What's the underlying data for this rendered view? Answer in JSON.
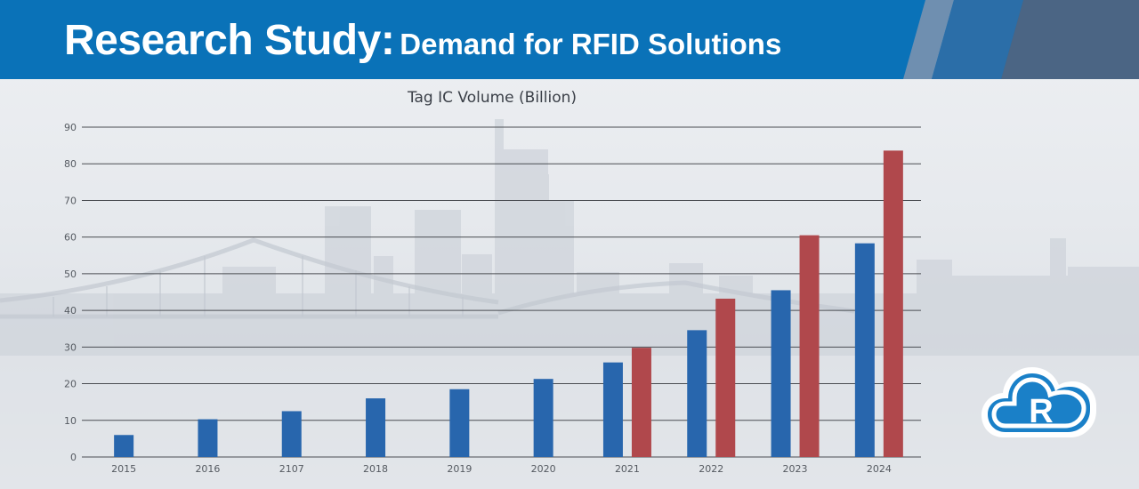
{
  "banner": {
    "title_main": "Research Study:",
    "title_sub": "Demand for RFID Solutions"
  },
  "colors": {
    "header": "#0a72b8",
    "series_1": "#2866ad",
    "series_2": "#b0484c",
    "logo": "#1a80c8"
  },
  "logo": {
    "icon": "cloud-r-logo-icon",
    "letter": "R"
  },
  "chart_data": {
    "type": "bar",
    "title": "Tag IC Volume (Billion)",
    "categories": [
      "2015",
      "2016",
      "2107",
      "2018",
      "2019",
      "2020",
      "2021",
      "2022",
      "2023",
      "2024"
    ],
    "series": [
      {
        "values": [
          6,
          10.3,
          12.5,
          16,
          18.5,
          21.3,
          25.8,
          34.6,
          45.5,
          58.3
        ]
      },
      {
        "values": [
          null,
          null,
          null,
          null,
          null,
          null,
          29.8,
          43.2,
          60.5,
          83.6
        ]
      }
    ],
    "ylim": [
      0,
      90
    ],
    "yticks": [
      "0",
      "10",
      "20",
      "30",
      "40",
      "50",
      "60",
      "70",
      "80",
      "90"
    ],
    "grid": true,
    "legend": "none"
  }
}
